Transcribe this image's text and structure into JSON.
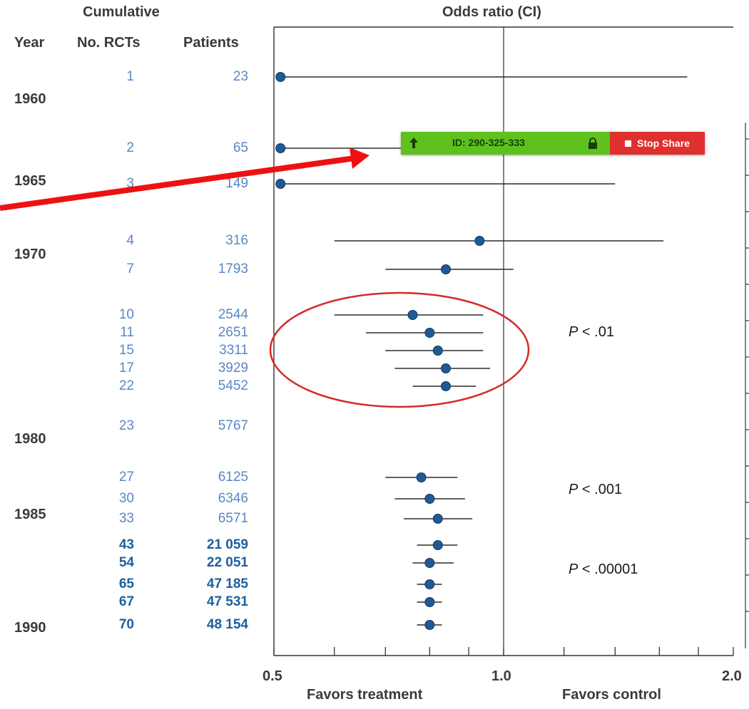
{
  "headers": {
    "cumulative": "Cumulative",
    "year": "Year",
    "num_rcts": "No. RCTs",
    "patients": "Patients",
    "odds_ratio": "Odds ratio (CI)"
  },
  "years": [
    "1960",
    "1965",
    "1970",
    "1980",
    "1985",
    "1990"
  ],
  "share_bar": {
    "id_text": "ID: 290-325-333",
    "stop_label": "Stop Share"
  },
  "p_values": [
    "< .01",
    "< .001",
    "< .00001"
  ],
  "p_symbol": "P",
  "axis": {
    "tick_labels": [
      "0.5",
      "1.0",
      "2.0"
    ],
    "favors_treatment": "Favors treatment",
    "favors_control": "Favors control"
  },
  "colors": {
    "point": "#1f5a94",
    "ci_line": "#2b2b2b",
    "light_text": "#5a87c3",
    "dark_text": "#1d5fa0",
    "highlight_circle": "#d62a2a",
    "annotation_arrow": "#ee1111"
  },
  "chart_data": {
    "type": "forest",
    "title": "Odds ratio (CI)",
    "scale": "log",
    "xlim": [
      0.5,
      2.0
    ],
    "reference_line": 1.0,
    "rows": [
      {
        "rcts": "1",
        "patients": "23",
        "or": 0.51,
        "lo": 0.51,
        "hi": 1.74,
        "bold": false
      },
      {
        "rcts": "2",
        "patients": "65",
        "or": 0.51,
        "lo": 0.51,
        "hi": null,
        "bold": false
      },
      {
        "rcts": "3",
        "patients": "149",
        "or": 0.51,
        "lo": 0.51,
        "hi": 1.4,
        "bold": false
      },
      {
        "rcts": "4",
        "patients": "316",
        "or": 0.93,
        "lo": 0.6,
        "hi": 1.62,
        "bold": false
      },
      {
        "rcts": "7",
        "patients": "1793",
        "or": 0.84,
        "lo": 0.7,
        "hi": 1.03,
        "bold": false
      },
      {
        "rcts": "10",
        "patients": "2544",
        "or": 0.76,
        "lo": 0.6,
        "hi": 0.94,
        "bold": false
      },
      {
        "rcts": "11",
        "patients": "2651",
        "or": 0.8,
        "lo": 0.66,
        "hi": 0.94,
        "bold": false
      },
      {
        "rcts": "15",
        "patients": "3311",
        "or": 0.82,
        "lo": 0.7,
        "hi": 0.94,
        "bold": false
      },
      {
        "rcts": "17",
        "patients": "3929",
        "or": 0.84,
        "lo": 0.72,
        "hi": 0.96,
        "bold": false
      },
      {
        "rcts": "22",
        "patients": "5452",
        "or": 0.84,
        "lo": 0.76,
        "hi": 0.92,
        "bold": false
      },
      {
        "rcts": "23",
        "patients": "5767",
        "or": null,
        "lo": null,
        "hi": null,
        "bold": false
      },
      {
        "rcts": "27",
        "patients": "6125",
        "or": 0.78,
        "lo": 0.7,
        "hi": 0.87,
        "bold": false
      },
      {
        "rcts": "30",
        "patients": "6346",
        "or": 0.8,
        "lo": 0.72,
        "hi": 0.89,
        "bold": false
      },
      {
        "rcts": "33",
        "patients": "6571",
        "or": 0.82,
        "lo": 0.74,
        "hi": 0.91,
        "bold": false
      },
      {
        "rcts": "43",
        "patients": "21 059",
        "or": 0.82,
        "lo": 0.77,
        "hi": 0.87,
        "bold": true
      },
      {
        "rcts": "54",
        "patients": "22 051",
        "or": 0.8,
        "lo": 0.76,
        "hi": 0.86,
        "bold": true
      },
      {
        "rcts": "65",
        "patients": "47 185",
        "or": 0.8,
        "lo": 0.77,
        "hi": 0.83,
        "bold": true
      },
      {
        "rcts": "67",
        "patients": "47 531",
        "or": 0.8,
        "lo": 0.77,
        "hi": 0.83,
        "bold": true
      },
      {
        "rcts": "70",
        "patients": "48 154",
        "or": 0.8,
        "lo": 0.77,
        "hi": 0.83,
        "bold": true
      }
    ],
    "xlabel_left": "Favors treatment",
    "xlabel_right": "Favors control"
  }
}
